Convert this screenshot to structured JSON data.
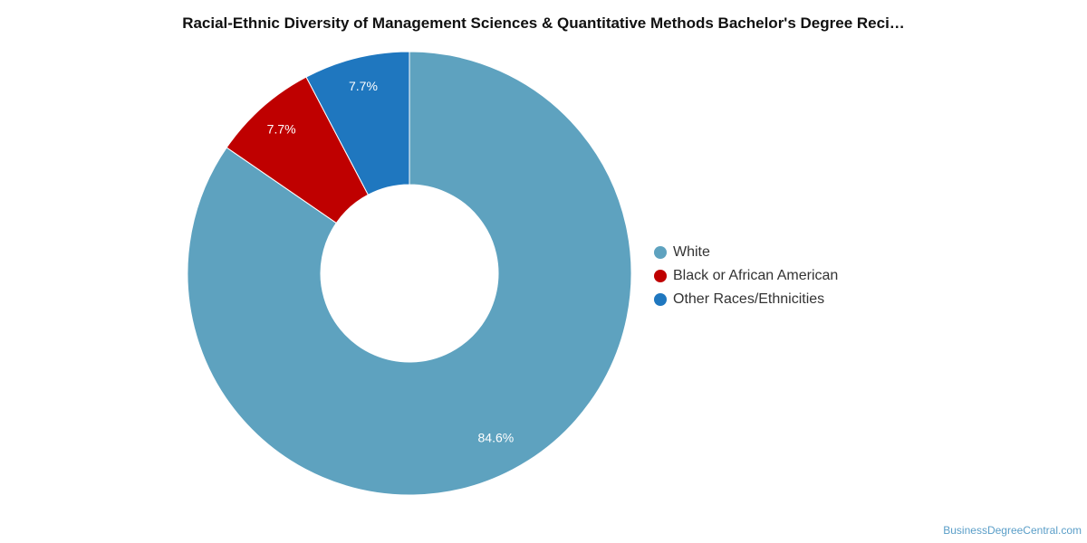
{
  "chart_data": {
    "type": "pie",
    "title": "Racial-Ethnic Diversity of Management Sciences & Quantitative Methods Bachelor's Degree Reci…",
    "donut": true,
    "legend_position": "right",
    "series": [
      {
        "name": "White",
        "value": 84.6,
        "label": "84.6%",
        "color": "#5ea2bf"
      },
      {
        "name": "Black or African American",
        "value": 7.7,
        "label": "7.7%",
        "color": "#bf0000"
      },
      {
        "name": "Other Races/Ethnicities",
        "value": 7.7,
        "label": "7.7%",
        "color": "#1f77bf"
      }
    ]
  },
  "footer": {
    "credit": "BusinessDegreeCentral.com"
  }
}
